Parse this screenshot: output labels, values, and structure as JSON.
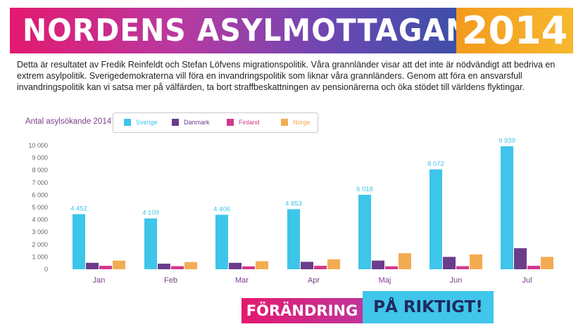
{
  "banner": {
    "title": "NORDENS ASYLMOTTAGANDE",
    "year": "2014"
  },
  "intro": "Detta är resultatet av Fredik Reinfeldt och Stefan Löfvens migrationspolitik. Våra grannländer visar att det inte är nödvändigt att bedriva en extrem asylpolitik. Sverigedemokraterna vill föra en invandringspolitik som liknar våra grannländers. Genom att föra en ansvarsfull invandringspolitik kan vi satsa mer på välfärden, ta bort straffbeskattningen av pensionärerna och öka stödet till världens flyktingar.",
  "footer": {
    "left": "FÖRÄNDRING",
    "right": "PÅ RIKTIGT!"
  },
  "chart_data": {
    "type": "bar",
    "title": "Antal asylsökande 2014",
    "categories": [
      "Jan",
      "Feb",
      "Mar",
      "Apr",
      "Maj",
      "Jun",
      "Jul"
    ],
    "ylim": [
      0,
      10000
    ],
    "yticks": [
      "0",
      "1 000",
      "2 000",
      "3 000",
      "4 000",
      "5 000",
      "6 000",
      "7 000",
      "8 000",
      "9 000",
      "10 000"
    ],
    "grid": false,
    "legend_position": "top",
    "series": [
      {
        "name": "Sverige",
        "color": "#3ec5ea",
        "values": [
          4452,
          4109,
          4406,
          4853,
          6018,
          8072,
          9939
        ],
        "labels": [
          "4 452",
          "4 109",
          "4 406",
          "4 853",
          "6 018",
          "8 072",
          "9 939"
        ]
      },
      {
        "name": "Danmark",
        "color": "#6b3c8a",
        "values": [
          520,
          450,
          520,
          600,
          700,
          1000,
          1700
        ]
      },
      {
        "name": "Finland",
        "color": "#d2388e",
        "values": [
          280,
          250,
          230,
          280,
          240,
          250,
          280
        ]
      },
      {
        "name": "Norge",
        "color": "#f3ac52",
        "values": [
          700,
          580,
          650,
          800,
          1300,
          1200,
          1000
        ]
      }
    ]
  }
}
